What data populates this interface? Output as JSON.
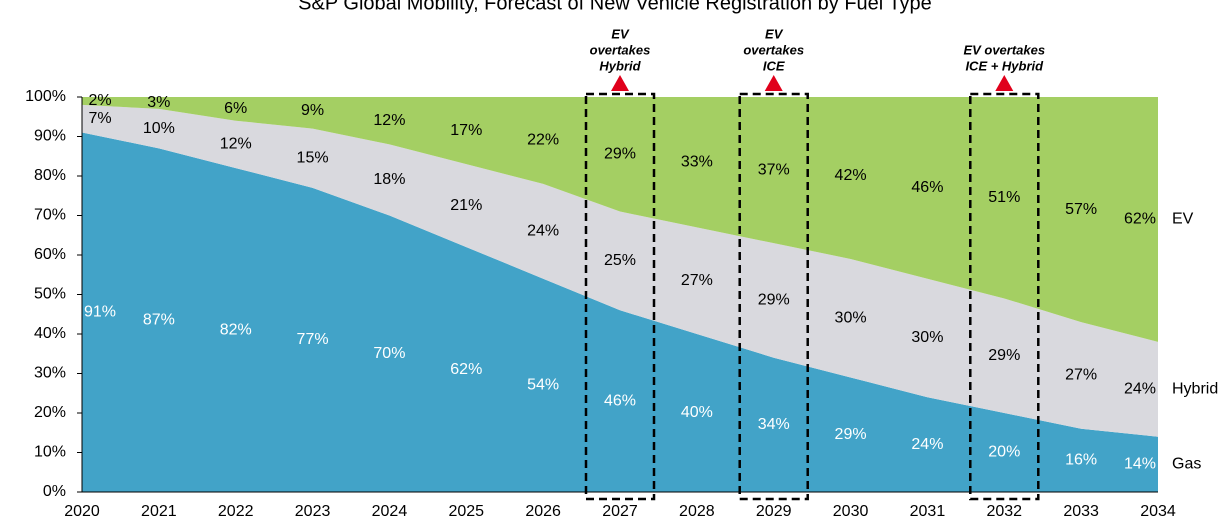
{
  "chart_data": {
    "type": "stacked_area",
    "title": "S&P Global Mobility, Forecast of New Vehicle Registration by Fuel Type",
    "categories": [
      "2020",
      "2021",
      "2022",
      "2023",
      "2024",
      "2025",
      "2026",
      "2027",
      "2028",
      "2029",
      "2030",
      "2031",
      "2032",
      "2033",
      "2034"
    ],
    "series": [
      {
        "name": "Gas",
        "color": "#42a3c8",
        "label_color": "#ffffff",
        "values": [
          91,
          87,
          82,
          77,
          70,
          62,
          54,
          46,
          40,
          34,
          29,
          24,
          20,
          16,
          14
        ]
      },
      {
        "name": "Hybrid",
        "color": "#d9d9de",
        "label_color": "#000000",
        "values": [
          7,
          10,
          12,
          15,
          18,
          21,
          24,
          25,
          27,
          29,
          30,
          30,
          29,
          27,
          24
        ]
      },
      {
        "name": "EV",
        "color": "#a4cf63",
        "label_color": "#000000",
        "values": [
          2,
          3,
          6,
          9,
          12,
          17,
          22,
          29,
          33,
          37,
          42,
          46,
          51,
          57,
          62
        ]
      }
    ],
    "ylim": [
      0,
      100
    ],
    "yticks": [
      {
        "value": 0,
        "label": "0%"
      },
      {
        "value": 10,
        "label": "10%"
      },
      {
        "value": 20,
        "label": "20%"
      },
      {
        "value": 30,
        "label": "30%"
      },
      {
        "value": 40,
        "label": "40%"
      },
      {
        "value": 50,
        "label": "50%"
      },
      {
        "value": 60,
        "label": "60%"
      },
      {
        "value": 70,
        "label": "70%"
      },
      {
        "value": 80,
        "label": "80%"
      },
      {
        "value": 90,
        "label": "90%"
      },
      {
        "value": 100,
        "label": "100%"
      }
    ],
    "value_labels": [
      [
        "91%",
        "87%",
        "82%",
        "77%",
        "70%",
        "62%",
        "54%",
        "46%",
        "40%",
        "34%",
        "29%",
        "24%",
        "20%",
        "16%",
        "14%"
      ],
      [
        "7%",
        "10%",
        "12%",
        "15%",
        "18%",
        "21%",
        "24%",
        "25%",
        "27%",
        "29%",
        "30%",
        "30%",
        "29%",
        "27%",
        "24%"
      ],
      [
        "2%",
        "3%",
        "6%",
        "9%",
        "12%",
        "17%",
        "22%",
        "29%",
        "33%",
        "37%",
        "42%",
        "46%",
        "51%",
        "57%",
        "62%"
      ]
    ],
    "annotations": [
      {
        "category": "2027",
        "lines": [
          "EV",
          "overtakes",
          "Hybrid"
        ]
      },
      {
        "category": "2029",
        "lines": [
          "EV",
          "overtakes",
          "ICE"
        ]
      },
      {
        "category": "2032",
        "lines": [
          "EV overtakes",
          "ICE + Hybrid"
        ]
      }
    ]
  }
}
